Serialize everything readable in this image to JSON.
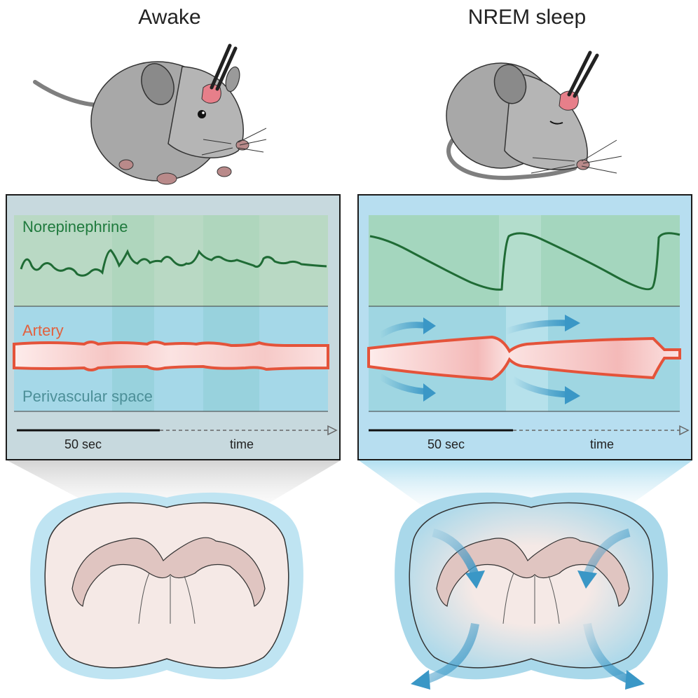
{
  "states": {
    "awake": {
      "title": "Awake",
      "panel": {
        "norepinephrine_label": "Norepinephrine",
        "artery_label": "Artery",
        "perivascular_label": "Perivascular space",
        "scale_label": "50 sec",
        "time_label": "time"
      }
    },
    "sleep": {
      "title": "NREM sleep",
      "panel": {
        "scale_label": "50 sec",
        "time_label": "time"
      }
    }
  },
  "colors": {
    "norepinephrine_trace": "#1f6b35",
    "artery": "#e4533a",
    "artery_fill": "#f6c9c7",
    "perivascular": "#a9dcea",
    "flow_arrow": "#3a97c6",
    "brain_fill": "#f5e9e6",
    "brain_outline": "#a9d8ea",
    "mouse_body": "#a9a9a9",
    "implant": "#e77f8a"
  },
  "icons": [
    "mouse-awake-illustration",
    "mouse-sleeping-illustration",
    "brain-section-illustration",
    "flow-arrow-icon"
  ]
}
